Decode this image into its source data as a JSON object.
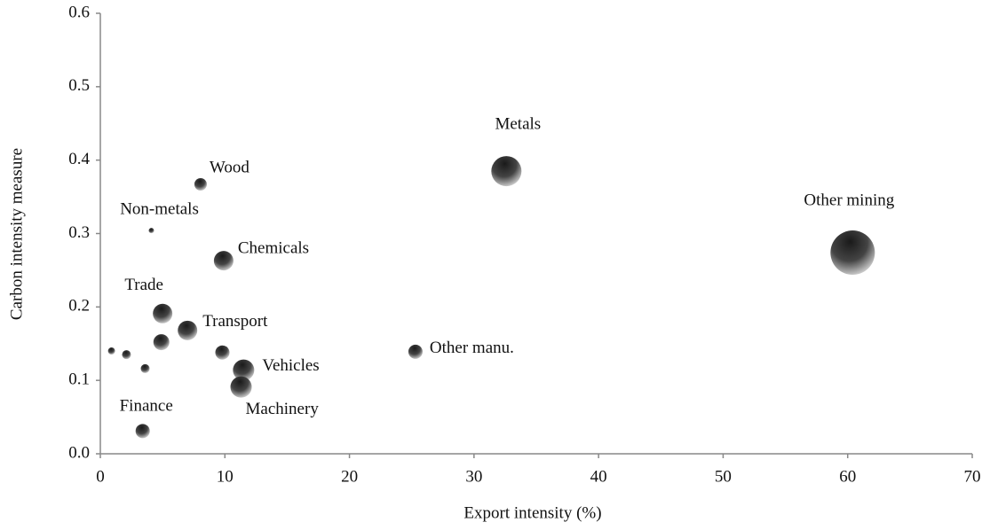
{
  "chart_data": {
    "type": "bubble",
    "xlabel": "Export intensity (%)",
    "ylabel": "Carbon intensity measure",
    "labels": [
      "Metals",
      "Other mining",
      "Wood",
      "Non-metals",
      "Chemicals",
      "Trade",
      "Transport",
      null,
      null,
      "Vehicles",
      "Machinery",
      "Other manu.",
      "Finance",
      null,
      null,
      null
    ],
    "x": [
      32.6,
      60.4,
      8.05,
      4.1,
      9.9,
      5.0,
      7.0,
      4.9,
      9.8,
      11.5,
      11.3,
      25.3,
      3.4,
      0.9,
      2.1,
      3.6
    ],
    "y": [
      0.385,
      0.274,
      0.367,
      0.304,
      0.263,
      0.191,
      0.168,
      0.152,
      0.138,
      0.114,
      0.091,
      0.139,
      0.031,
      0.14,
      0.135,
      0.116
    ],
    "sizes": [
      17,
      25,
      7,
      3,
      11,
      11,
      11,
      9,
      8,
      12,
      12,
      8,
      8,
      4,
      5,
      5
    ],
    "xlim": [
      0,
      70
    ],
    "xticks": [
      0,
      10,
      20,
      30,
      40,
      50,
      60,
      70
    ],
    "ylim": [
      0,
      0.6
    ],
    "yticks": [
      {
        "value": 0,
        "label": "0.0"
      },
      0.1,
      0.2,
      0.3,
      0.4,
      0.5,
      0.6
    ],
    "grid": false
  }
}
